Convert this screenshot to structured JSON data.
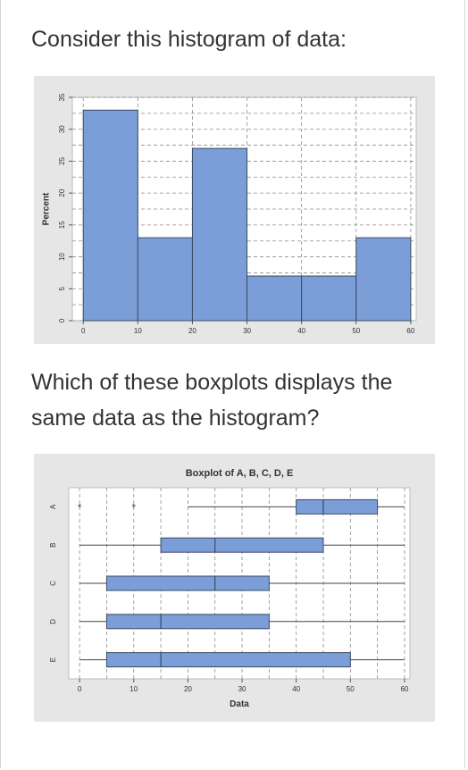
{
  "question": {
    "intro": "Consider this histogram of data:",
    "prompt": "Which of these boxplots displays the same data as the histogram?"
  },
  "colors": {
    "bar_fill": "#7b9ed9",
    "bar_stroke": "#3b4a63",
    "panel_bg": "#e6e6e6",
    "plot_bg": "#ffffff",
    "grid": "#8c8c8c",
    "text": "#333333"
  },
  "chart_data": [
    {
      "type": "bar",
      "title": "",
      "xlabel": "",
      "ylabel": "Percent",
      "bins": [
        {
          "start": 0,
          "end": 10,
          "percent": 33
        },
        {
          "start": 10,
          "end": 20,
          "percent": 13
        },
        {
          "start": 20,
          "end": 30,
          "percent": 27
        },
        {
          "start": 30,
          "end": 40,
          "percent": 7
        },
        {
          "start": 40,
          "end": 50,
          "percent": 7
        },
        {
          "start": 50,
          "end": 60,
          "percent": 13
        }
      ],
      "xlim": [
        -2,
        61
      ],
      "ylim": [
        0,
        35
      ],
      "xticks": [
        0,
        10,
        20,
        30,
        40,
        50,
        60
      ],
      "yticks": [
        0,
        5,
        10,
        15,
        20,
        25,
        30,
        35
      ],
      "grid": true
    },
    {
      "type": "boxplot",
      "title": "Boxplot of A, B, C, D, E",
      "xlabel": "Data",
      "ylabel": "",
      "xlim": [
        -2,
        61
      ],
      "xticks": [
        0,
        10,
        20,
        30,
        40,
        50,
        60
      ],
      "grid": true,
      "series": [
        {
          "name": "A",
          "whisker_low": 20,
          "q1": 40,
          "median": 45,
          "q3": 55,
          "whisker_high": 60,
          "outliers": [
            0,
            10
          ]
        },
        {
          "name": "B",
          "whisker_low": 0,
          "q1": 15,
          "median": 25,
          "q3": 45,
          "whisker_high": 60,
          "outliers": []
        },
        {
          "name": "C",
          "whisker_low": 0,
          "q1": 5,
          "median": 25,
          "q3": 35,
          "whisker_high": 60,
          "outliers": []
        },
        {
          "name": "D",
          "whisker_low": 0,
          "q1": 5,
          "median": 15,
          "q3": 35,
          "whisker_high": 60,
          "outliers": []
        },
        {
          "name": "E",
          "whisker_low": 0,
          "q1": 5,
          "median": 15,
          "q3": 50,
          "whisker_high": 60,
          "outliers": []
        }
      ]
    }
  ]
}
